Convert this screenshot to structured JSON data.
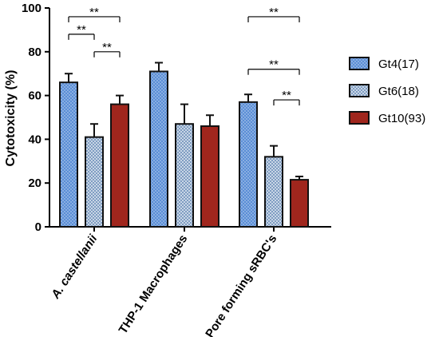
{
  "chart_data": {
    "type": "bar",
    "ylabel": "Cytotoxicity (%)",
    "xlabel": "",
    "ylim": [
      0,
      100
    ],
    "yticks": [
      0,
      20,
      40,
      60,
      80,
      100
    ],
    "categories": [
      "A. castellanii",
      "THP-1 Macrophages",
      "Pore forming sRBC's"
    ],
    "category_italic": [
      true,
      false,
      false
    ],
    "series": [
      {
        "name": "Gt4(17)",
        "values": [
          66,
          71,
          57
        ],
        "errors": [
          4,
          4,
          3.5
        ],
        "color": "#5b8ed6",
        "pattern": "dots"
      },
      {
        "name": "Gt6(18)",
        "values": [
          41,
          47,
          32
        ],
        "errors": [
          6,
          9,
          5
        ],
        "color": "#9fb8d6",
        "pattern": "check"
      },
      {
        "name": "Gt10(93)",
        "values": [
          56,
          46,
          21.5
        ],
        "errors": [
          4,
          5,
          1.5
        ],
        "color": "#a0261d",
        "pattern": "solid"
      }
    ],
    "legend_position": "right",
    "significance": [
      {
        "category": 0,
        "from": 0,
        "to": 2,
        "y": 96,
        "label": "**"
      },
      {
        "category": 0,
        "from": 0,
        "to": 1,
        "y": 88,
        "label": "**"
      },
      {
        "category": 0,
        "from": 1,
        "to": 2,
        "y": 80,
        "label": "**"
      },
      {
        "category": 2,
        "from": 0,
        "to": 2,
        "y": 96,
        "label": "**"
      },
      {
        "category": 2,
        "from": 0,
        "to": 2,
        "y": 72,
        "label": "**"
      },
      {
        "category": 2,
        "from": 1,
        "to": 2,
        "y": 58,
        "label": "**"
      }
    ]
  }
}
